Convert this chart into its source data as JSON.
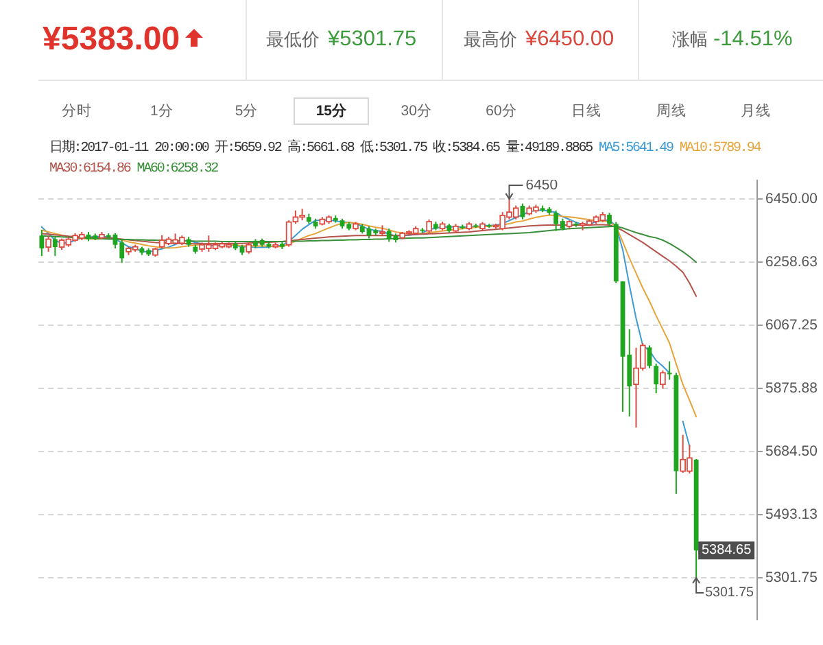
{
  "chart_data": {
    "type": "candlestick",
    "title": "¥5383.00",
    "annotations": [
      "最低价",
      "¥5301.75",
      "最高价",
      "¥6450.00",
      "涨幅",
      "-14.51%",
      "分时",
      "1分",
      "5分",
      "15分",
      "30分",
      "60分",
      "日线",
      "周线",
      "月线",
      "日期:2017-01-11 20:00:00 开:5659.92 高:5661.68 低:5301.75 收:5384.65 量:49189.8865",
      "5301.75",
      {
        "text": "6450",
        "y": 6450
      },
      {
        "text": "5384.65",
        "y": 5384.65
      }
    ],
    "categories": [
      null,
      null,
      null,
      null,
      null,
      null,
      null,
      null,
      null,
      null,
      null,
      null,
      null,
      null,
      null,
      null,
      null,
      null,
      null,
      null,
      null,
      null,
      null,
      null,
      null,
      null,
      null,
      null,
      null,
      null,
      null,
      null,
      null,
      null,
      null,
      null,
      null,
      null,
      null,
      null,
      null,
      null,
      null,
      null,
      null,
      null,
      null,
      null,
      null,
      null,
      null,
      null,
      null,
      null,
      null,
      null,
      null,
      null,
      null,
      null,
      null,
      null,
      null,
      null,
      null,
      null,
      null,
      null,
      null,
      null,
      null,
      null,
      null,
      null,
      null,
      null,
      null,
      null,
      null,
      null,
      null,
      null,
      null,
      null,
      null,
      null,
      null,
      null,
      null,
      null,
      null,
      null,
      null,
      null,
      null,
      null,
      null,
      null,
      null
    ],
    "ohlc": [
      [
        6339,
        6356,
        6277,
        6300
      ],
      [
        6304,
        6339,
        6290,
        6328
      ],
      [
        6328,
        6335,
        6277,
        6304
      ],
      [
        6304,
        6330,
        6296,
        6325
      ],
      [
        6311,
        6335,
        6305,
        6328
      ],
      [
        6325,
        6346,
        6320,
        6339
      ],
      [
        6331,
        6350,
        6325,
        6342
      ],
      [
        6342,
        6350,
        6322,
        6328
      ],
      [
        6339,
        6345,
        6325,
        6330
      ],
      [
        6332,
        6350,
        6328,
        6342
      ],
      [
        6340,
        6346,
        6328,
        6334
      ],
      [
        6342,
        6346,
        6300,
        6311
      ],
      [
        6318,
        6325,
        6256,
        6270
      ],
      [
        6290,
        6305,
        6280,
        6300
      ],
      [
        6296,
        6311,
        6290,
        6305
      ],
      [
        6300,
        6305,
        6280,
        6287
      ],
      [
        6295,
        6300,
        6277,
        6282
      ],
      [
        6280,
        6302,
        6275,
        6298
      ],
      [
        6305,
        6340,
        6300,
        6325
      ],
      [
        6315,
        6335,
        6310,
        6328
      ],
      [
        6316,
        6345,
        6312,
        6326
      ],
      [
        6316,
        6339,
        6310,
        6333
      ],
      [
        6328,
        6335,
        6305,
        6311
      ],
      [
        6305,
        6311,
        6284,
        6290
      ],
      [
        6298,
        6318,
        6290,
        6311
      ],
      [
        6300,
        6339,
        6290,
        6311
      ],
      [
        6300,
        6318,
        6295,
        6311
      ],
      [
        6305,
        6320,
        6300,
        6314
      ],
      [
        6305,
        6318,
        6300,
        6311
      ],
      [
        6314,
        6320,
        6295,
        6300
      ],
      [
        6305,
        6311,
        6280,
        6287
      ],
      [
        6290,
        6318,
        6284,
        6311
      ],
      [
        6322,
        6328,
        6300,
        6308
      ],
      [
        6325,
        6330,
        6305,
        6311
      ],
      [
        6314,
        6320,
        6300,
        6305
      ],
      [
        6305,
        6318,
        6300,
        6311
      ],
      [
        6314,
        6320,
        6298,
        6305
      ],
      [
        6311,
        6385,
        6305,
        6380
      ],
      [
        6381,
        6415,
        6375,
        6395
      ],
      [
        6395,
        6420,
        6385,
        6400
      ],
      [
        6395,
        6405,
        6375,
        6381
      ],
      [
        6381,
        6390,
        6360,
        6367
      ],
      [
        6374,
        6395,
        6370,
        6388
      ],
      [
        6381,
        6400,
        6375,
        6395
      ],
      [
        6392,
        6400,
        6378,
        6384
      ],
      [
        6385,
        6390,
        6360,
        6367
      ],
      [
        6374,
        6380,
        6355,
        6360
      ],
      [
        6360,
        6380,
        6355,
        6374
      ],
      [
        6367,
        6375,
        6345,
        6350
      ],
      [
        6360,
        6367,
        6330,
        6339
      ],
      [
        6355,
        6360,
        6339,
        6346
      ],
      [
        6346,
        6370,
        6339,
        6350
      ],
      [
        6353,
        6360,
        6320,
        6328
      ],
      [
        6339,
        6345,
        6318,
        6325
      ],
      [
        6332,
        6350,
        6328,
        6346
      ],
      [
        6346,
        6355,
        6339,
        6350
      ],
      [
        6346,
        6367,
        6342,
        6360
      ],
      [
        6357,
        6362,
        6348,
        6353
      ],
      [
        6353,
        6388,
        6348,
        6381
      ],
      [
        6374,
        6381,
        6355,
        6360
      ],
      [
        6360,
        6381,
        6355,
        6374
      ],
      [
        6370,
        6375,
        6348,
        6353
      ],
      [
        6353,
        6374,
        6348,
        6367
      ],
      [
        6367,
        6372,
        6358,
        6362
      ],
      [
        6360,
        6380,
        6355,
        6374
      ],
      [
        6370,
        6375,
        6362,
        6367
      ],
      [
        6360,
        6380,
        6355,
        6374
      ],
      [
        6370,
        6375,
        6362,
        6367
      ],
      [
        6367,
        6375,
        6360,
        6370
      ],
      [
        6360,
        6410,
        6355,
        6400
      ],
      [
        6395,
        6450,
        6388,
        6410
      ],
      [
        6395,
        6430,
        6388,
        6422
      ],
      [
        6429,
        6436,
        6388,
        6395
      ],
      [
        6405,
        6430,
        6400,
        6422
      ],
      [
        6414,
        6432,
        6408,
        6425
      ],
      [
        6422,
        6430,
        6410,
        6415
      ],
      [
        6420,
        6425,
        6402,
        6408
      ],
      [
        6408,
        6415,
        6353,
        6374
      ],
      [
        6383,
        6390,
        6355,
        6360
      ],
      [
        6367,
        6385,
        6360,
        6381
      ],
      [
        6375,
        6381,
        6365,
        6370
      ],
      [
        6370,
        6381,
        6355,
        6375
      ],
      [
        6372,
        6388,
        6368,
        6383
      ],
      [
        6381,
        6400,
        6375,
        6395
      ],
      [
        6385,
        6410,
        6380,
        6402
      ],
      [
        6402,
        6408,
        6367,
        6374
      ],
      [
        6374,
        6380,
        6195,
        6200
      ],
      [
        6200,
        6200,
        5805,
        5972
      ],
      [
        5978,
        6055,
        5791,
        5882
      ],
      [
        5888,
        5999,
        5757,
        5937
      ],
      [
        5937,
        6013,
        5930,
        6006
      ],
      [
        6000,
        6006,
        5937,
        5944
      ],
      [
        5944,
        5951,
        5861,
        5888
      ],
      [
        5888,
        5930,
        5875,
        5923
      ],
      [
        5923,
        5958,
        5902,
        5920
      ],
      [
        5916,
        5923,
        5556,
        5625
      ],
      [
        5625,
        5735,
        5620,
        5660
      ],
      [
        5625,
        5705,
        5618,
        5665
      ],
      [
        5659.92,
        5661.68,
        5301.75,
        5384.65
      ]
    ],
    "colors": [
      "#1fa51f",
      "#dd4a40",
      "#1fa51f",
      "#dd4a40",
      "#dd4a40",
      "#dd4a40",
      "#dd4a40",
      "#1fa51f",
      "#1fa51f",
      "#dd4a40",
      "#1fa51f",
      "#1fa51f",
      "#1fa51f",
      "#dd4a40",
      "#dd4a40",
      "#1fa51f",
      "#1fa51f",
      "#dd4a40",
      "#dd4a40",
      "#dd4a40",
      "#dd4a40",
      "#dd4a40",
      "#1fa51f",
      "#1fa51f",
      "#dd4a40",
      "#dd4a40",
      "#dd4a40",
      "#dd4a40",
      "#dd4a40",
      "#1fa51f",
      "#1fa51f",
      "#dd4a40",
      "#1fa51f",
      "#1fa51f",
      "#1fa51f",
      "#dd4a40",
      "#1fa51f",
      "#dd4a40",
      "#dd4a40",
      "#dd4a40",
      "#1fa51f",
      "#1fa51f",
      "#dd4a40",
      "#dd4a40",
      "#1fa51f",
      "#1fa51f",
      "#1fa51f",
      "#dd4a40",
      "#1fa51f",
      "#1fa51f",
      "#1fa51f",
      "#dd4a40",
      "#1fa51f",
      "#1fa51f",
      "#dd4a40",
      "#dd4a40",
      "#dd4a40",
      "#1fa51f",
      "#dd4a40",
      "#1fa51f",
      "#dd4a40",
      "#1fa51f",
      "#dd4a40",
      "#1fa51f",
      "#dd4a40",
      "#1fa51f",
      "#dd4a40",
      "#1fa51f",
      "#dd4a40",
      "#dd4a40",
      "#dd4a40",
      "#dd4a40",
      "#1fa51f",
      "#dd4a40",
      "#dd4a40",
      "#1fa51f",
      "#1fa51f",
      "#1fa51f",
      "#1fa51f",
      "#dd4a40",
      "#1fa51f",
      "#dd4a40",
      "#dd4a40",
      "#dd4a40",
      "#dd4a40",
      "#1fa51f",
      "#1fa51f",
      "#1fa51f",
      "#1fa51f",
      "#dd4a40",
      "#dd4a40",
      "#1fa51f",
      "#1fa51f",
      "#dd4a40",
      "#1fa51f",
      "#1fa51f",
      "#dd4a40",
      "#dd4a40",
      "#1fa51f"
    ],
    "series": [
      {
        "name": "MA5:5641.49",
        "type": "line",
        "color": "#3c9ad4",
        "values": [
          6365,
          6345,
          6325,
          6315,
          6317,
          6325,
          6332,
          6334,
          6336,
          6336,
          6335,
          6329,
          6317,
          6305,
          6300,
          6291,
          6289,
          6294,
          6299,
          6304,
          6312,
          6322,
          6324,
          6318,
          6314,
          6311,
          6307,
          6311,
          6312,
          6309,
          6305,
          6305,
          6303,
          6303,
          6304,
          6309,
          6308,
          6322,
          6339,
          6358,
          6372,
          6385,
          6386,
          6386,
          6383,
          6380,
          6379,
          6376,
          6367,
          6358,
          6354,
          6352,
          6343,
          6338,
          6339,
          6340,
          6342,
          6347,
          6358,
          6361,
          6366,
          6364,
          6367,
          6363,
          6366,
          6365,
          6369,
          6369,
          6370,
          6376,
          6384,
          6394,
          6402,
          6411,
          6415,
          6416,
          6413,
          6409,
          6396,
          6388,
          6379,
          6372,
          6374,
          6381,
          6385,
          6386,
          6367,
          6296,
          6188,
          6088,
          6006,
          5990,
          5960,
          5943,
          5922,
          null,
          5776,
          5700,
          null
        ]
      },
      {
        "name": "MA10:5789.94",
        "type": "line",
        "color": "#e8a43a",
        "values": [
          6355,
          6350,
          6345,
          6340,
          6336,
          6333,
          6330,
          6329,
          6328,
          6329,
          6331,
          6330,
          6325,
          6320,
          6316,
          6312,
          6308,
          6305,
          6302,
          6301,
          6302,
          6305,
          6308,
          6310,
          6312,
          6314,
          6315,
          6314,
          6312,
          6310,
          6308,
          6308,
          6307,
          6308,
          6307,
          6306,
          6305,
          6313,
          6322,
          6331,
          6339,
          6345,
          6354,
          6362,
          6370,
          6376,
          6379,
          6377,
          6373,
          6368,
          6364,
          6361,
          6356,
          6350,
          6347,
          6346,
          6345,
          6345,
          6348,
          6350,
          6353,
          6355,
          6358,
          6360,
          6362,
          6364,
          6366,
          6367,
          6368,
          6371,
          6375,
          6380,
          6383,
          6389,
          6394,
          6398,
          6401,
          6400,
          6397,
          6395,
          6393,
          6390,
          6387,
          6385,
          6383,
          6380,
          6367,
          6320,
          6270,
          6225,
          6180,
          6140,
          6096,
          6055,
          6013,
          5950,
          5888,
          5840,
          5790
        ]
      },
      {
        "name": "MA30:6154.86",
        "type": "line",
        "color": "#b5524a",
        "values": [
          6345,
          6343,
          6341,
          6339,
          6337,
          6336,
          6335,
          6334,
          6333,
          6332,
          6331,
          6330,
          6328,
          6326,
          6324,
          6322,
          6320,
          6318,
          6317,
          6316,
          6315,
          6315,
          6314,
          6314,
          6314,
          6314,
          6314,
          6314,
          6315,
          6315,
          6315,
          6316,
          6317,
          6318,
          6319,
          6320,
          6321,
          6323,
          6325,
          6327,
          6329,
          6331,
          6333,
          6335,
          6336,
          6337,
          6338,
          6339,
          6339,
          6339,
          6339,
          6339,
          6339,
          6339,
          6340,
          6341,
          6342,
          6343,
          6344,
          6345,
          6346,
          6347,
          6348,
          6349,
          6350,
          6352,
          6354,
          6356,
          6358,
          6360,
          6362,
          6364,
          6366,
          6368,
          6369,
          6370,
          6371,
          6371,
          6371,
          6371,
          6371,
          6371,
          6371,
          6372,
          6372,
          6371,
          6364,
          6354,
          6342,
          6330,
          6318,
          6304,
          6290,
          6276,
          6262,
          6246,
          6228,
          6195,
          6155
        ]
      },
      {
        "name": "MA60:6258.32",
        "type": "line",
        "color": "#3a8f3a",
        "values": [
          6338,
          6337,
          6336,
          6335,
          6334,
          6333,
          6332,
          6331,
          6330,
          6329,
          6328,
          6328,
          6327,
          6327,
          6326,
          6326,
          6325,
          6325,
          6324,
          6324,
          6323,
          6323,
          6323,
          6322,
          6322,
          6322,
          6322,
          6321,
          6321,
          6321,
          6321,
          6321,
          6321,
          6321,
          6321,
          6321,
          6321,
          6322,
          6322,
          6322,
          6323,
          6323,
          6324,
          6324,
          6325,
          6325,
          6326,
          6326,
          6327,
          6327,
          6328,
          6328,
          6329,
          6330,
          6330,
          6331,
          6332,
          6332,
          6333,
          6334,
          6335,
          6336,
          6337,
          6338,
          6339,
          6340,
          6341,
          6342,
          6343,
          6344,
          6345,
          6346,
          6347,
          6348,
          6350,
          6352,
          6354,
          6356,
          6358,
          6360,
          6361,
          6362,
          6363,
          6364,
          6365,
          6366,
          6367,
          6362,
          6355,
          6348,
          6342,
          6336,
          6332,
          6325,
          6315,
          6303,
          6290,
          6275,
          6258
        ]
      }
    ],
    "ylim": [
      5173,
      6508
    ],
    "yticks": [
      {
        "value": 6450,
        "label": "6450.00"
      },
      {
        "value": 6258.63,
        "label": "6258.63"
      },
      {
        "value": 6067.25,
        "label": "6067.25"
      },
      {
        "value": 5875.88,
        "label": "5875.88"
      },
      {
        "value": 5684.5,
        "label": "5684.50"
      },
      {
        "value": 5493.13,
        "label": "5493.13"
      },
      {
        "value": 5301.75,
        "label": "5301.75"
      }
    ],
    "grid": "y",
    "legend": "top",
    "tick_labels": "y"
  }
}
